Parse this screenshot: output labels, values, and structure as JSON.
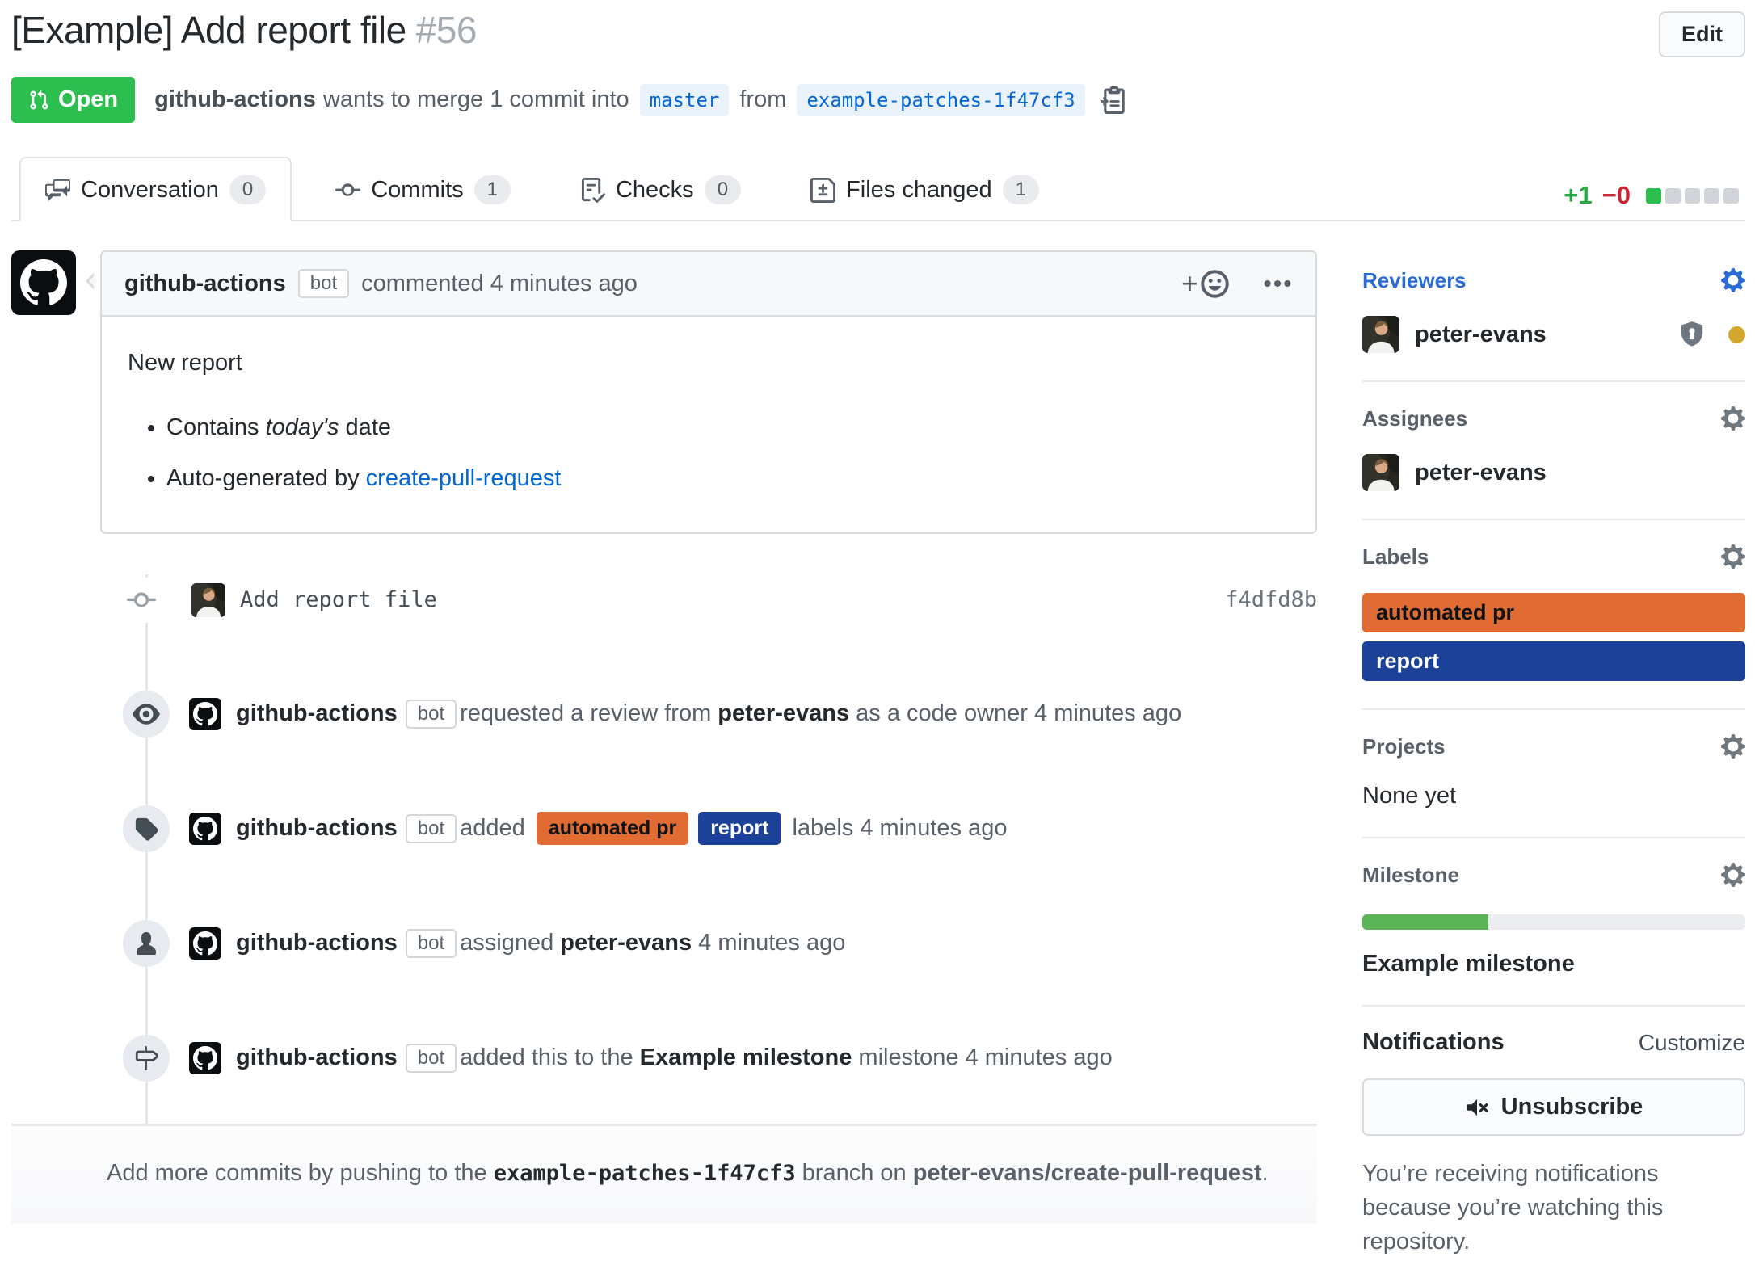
{
  "header": {
    "title": "[Example] Add report file",
    "number": "#56",
    "edit_button": "Edit",
    "status_badge": "Open",
    "meta": {
      "author": "github-actions",
      "text1": "wants to merge 1 commit into",
      "base_branch": "master",
      "text2": "from",
      "head_branch": "example-patches-1f47cf3"
    }
  },
  "tabs": [
    {
      "label": "Conversation",
      "count": "0"
    },
    {
      "label": "Commits",
      "count": "1"
    },
    {
      "label": "Checks",
      "count": "0"
    },
    {
      "label": "Files changed",
      "count": "1"
    }
  ],
  "diffstat": {
    "additions": "+1",
    "deletions": "−0",
    "blocks": [
      "green",
      "gray",
      "gray",
      "gray",
      "gray"
    ]
  },
  "comment": {
    "author": "github-actions",
    "bot_badge": "bot",
    "action": "commented 4 minutes ago",
    "add_reaction": "+",
    "body_title": "New report",
    "bullet1": {
      "pre": "Contains ",
      "em": "today's",
      "post": " date"
    },
    "bullet2": {
      "pre": "Auto-generated by ",
      "link": "create-pull-request"
    }
  },
  "timeline": {
    "commit": {
      "message": "Add report file",
      "sha": "f4dfd8b"
    },
    "events": [
      {
        "actor": "github-actions",
        "badge": "bot",
        "seg1": "requested a review from ",
        "strong": "peter-evans",
        "seg2": " as a code owner 4 minutes ago"
      },
      {
        "actor": "github-actions",
        "badge": "bot",
        "seg1": "added ",
        "label1": "automated pr",
        "label2": "report",
        "seg2": " labels 4 minutes ago"
      },
      {
        "actor": "github-actions",
        "badge": "bot",
        "seg1": "assigned ",
        "strong": "peter-evans",
        "seg2": " 4 minutes ago"
      },
      {
        "actor": "github-actions",
        "badge": "bot",
        "seg1": "added this to the ",
        "strong": "Example milestone",
        "seg2": " milestone 4 minutes ago"
      }
    ]
  },
  "footer": {
    "pre": "Add more commits by pushing to the ",
    "branch": "example-patches-1f47cf3",
    "mid": " branch on ",
    "repo": "peter-evans/create-pull-request",
    "end": "."
  },
  "sidebar": {
    "reviewers": {
      "heading": "Reviewers",
      "user": "peter-evans"
    },
    "assignees": {
      "heading": "Assignees",
      "user": "peter-evans"
    },
    "labels": {
      "heading": "Labels",
      "items": [
        {
          "name": "automated pr",
          "color": "#e06c33"
        },
        {
          "name": "report",
          "color": "#1b4298"
        }
      ]
    },
    "projects": {
      "heading": "Projects",
      "empty": "None yet"
    },
    "milestone": {
      "heading": "Milestone",
      "name": "Example milestone",
      "progress_percent": 33
    },
    "notifications": {
      "heading": "Notifications",
      "customize": "Customize",
      "button": "Unsubscribe",
      "caption": "You’re receiving notifications because you’re watching this repository."
    }
  },
  "colors": {
    "open_badge_green": "#2cbe4e",
    "addition_green": "#28a745",
    "deletion_red": "#cb2431",
    "link_blue": "#0366d6",
    "label_automated_pr": "#e06c33",
    "label_report": "#1b4298",
    "pending_review_dot": "#d2a72c",
    "milestone_progress_green": "#5bb558"
  }
}
